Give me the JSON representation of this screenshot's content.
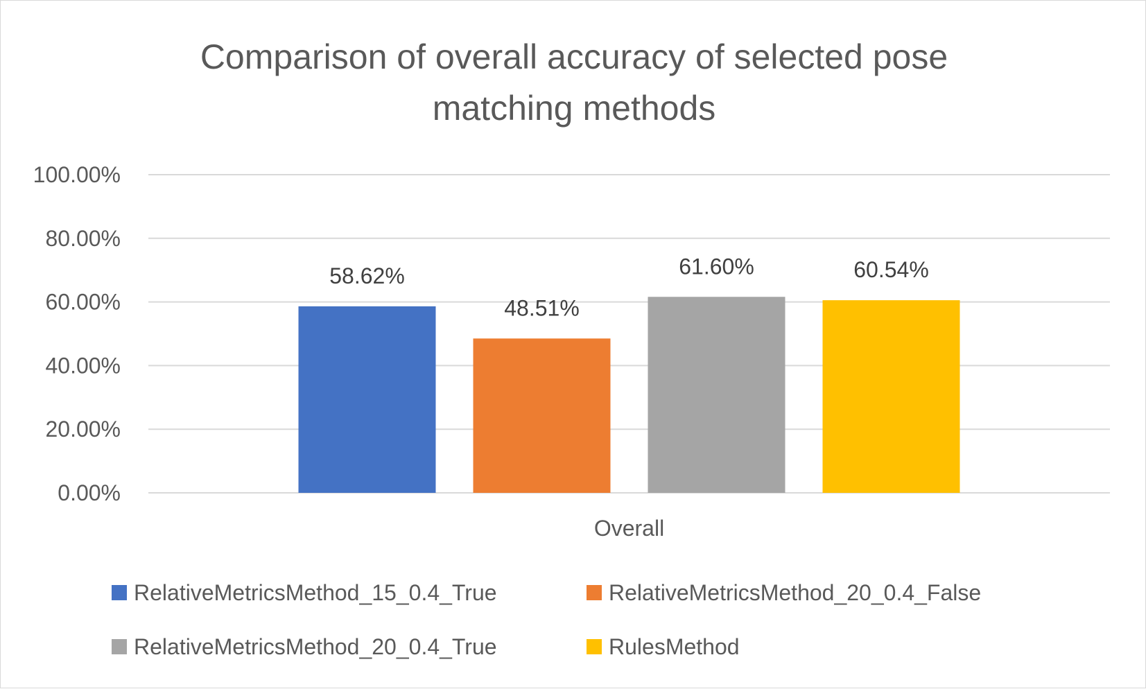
{
  "chart_data": {
    "type": "bar",
    "title": "Comparison of overall accuracy of selected pose matching methods",
    "title_lines": [
      "Comparison of overall accuracy of selected pose",
      "matching methods"
    ],
    "categories": [
      "Overall"
    ],
    "series": [
      {
        "name": "RelativeMetricsMethod_15_0.4_True",
        "values": [
          58.62
        ],
        "label": "58.62%",
        "color": "#4472C4"
      },
      {
        "name": "RelativeMetricsMethod_20_0.4_False",
        "values": [
          48.51
        ],
        "label": "48.51%",
        "color": "#ED7D31"
      },
      {
        "name": "RelativeMetricsMethod_20_0.4_True",
        "values": [
          61.6
        ],
        "label": "61.60%",
        "color": "#A5A5A5"
      },
      {
        "name": "RulesMethod",
        "values": [
          60.54
        ],
        "label": "60.54%",
        "color": "#FFC000"
      }
    ],
    "xlabel": "",
    "ylabel": "",
    "ylim": [
      0,
      100
    ],
    "yticks": [
      "0.00%",
      "20.00%",
      "40.00%",
      "60.00%",
      "80.00%",
      "100.00%"
    ],
    "grid": true,
    "legend": "bottom",
    "colors": {
      "gridline": "#d9d9d9",
      "text": "#595959"
    }
  }
}
